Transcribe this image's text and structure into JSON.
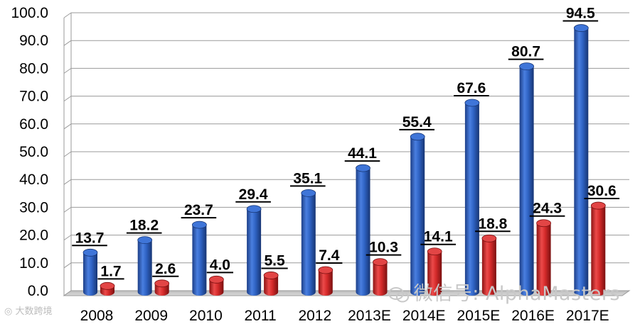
{
  "chart_data": {
    "type": "bar",
    "categories": [
      "2008",
      "2009",
      "2010",
      "2011",
      "2012",
      "2013E",
      "2014E",
      "2015E",
      "2016E",
      "2017E"
    ],
    "series": [
      {
        "values": [
          13.7,
          18.2,
          23.7,
          29.4,
          35.1,
          44.1,
          55.4,
          67.6,
          80.7,
          94.5
        ],
        "color": "#2f63c4"
      },
      {
        "values": [
          1.7,
          2.6,
          4.0,
          5.5,
          7.4,
          10.3,
          14.1,
          18.8,
          24.3,
          30.6
        ],
        "color": "#d42a2a"
      }
    ],
    "value_labels": {
      "series0": [
        "13.7",
        "18.2",
        "23.7",
        "29.4",
        "35.1",
        "44.1",
        "55.4",
        "67.6",
        "80.7",
        "94.5"
      ],
      "series1": [
        "1.7",
        "2.6",
        "4.0",
        "5.5",
        "7.4",
        "10.3",
        "14.1",
        "18.8",
        "24.3",
        "30.6"
      ]
    },
    "y_ticks": [
      "0.0",
      "10.0",
      "20.0",
      "30.0",
      "40.0",
      "50.0",
      "60.0",
      "70.0",
      "80.0",
      "90.0",
      "100.0"
    ],
    "ylim": [
      0,
      100
    ],
    "title": "",
    "xlabel": "",
    "ylabel": "",
    "grid": true,
    "style": "3d-cylinder",
    "data_labels_underlined": true
  },
  "watermark": {
    "text": "微信号: AlphaMasters",
    "icon": "wechat-icon",
    "secondary": "大数跨境",
    "secondary_icon": "weibo-icon"
  }
}
